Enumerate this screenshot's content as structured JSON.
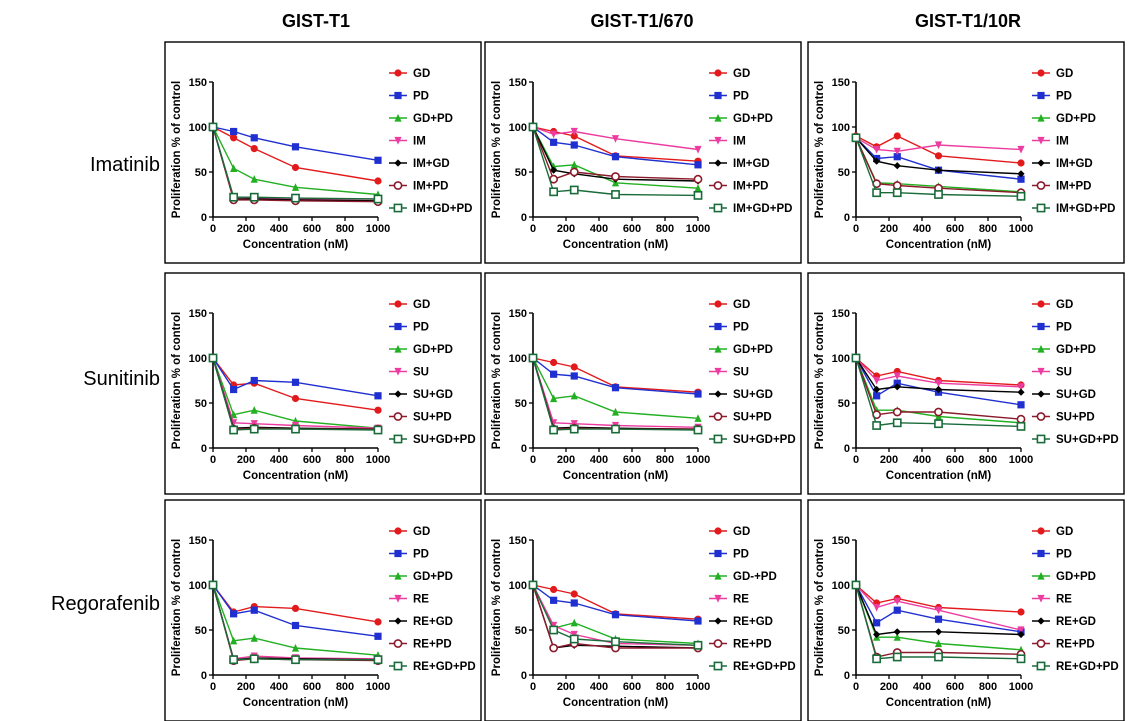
{
  "column_titles": [
    "GIST-T1",
    "GIST-T1/670",
    "GIST-T1/10R"
  ],
  "row_titles": [
    "Imatinib",
    "Sunitinib",
    "Regorafenib"
  ],
  "colors": {
    "GD": "#e31a1c",
    "PD": "#1f2fd0",
    "GD+PD": "#22b022",
    "drug": "#ec3ca0",
    "drug+GD": "#000000",
    "drug+PD": "#8b1a2a",
    "drug+GD+PD": "#1a6b3a"
  },
  "chart_data": [
    {
      "type": "line",
      "row": 0,
      "col": 0,
      "xlabel": "Concentration (nM)",
      "ylabel": "Proliferation % of control",
      "xlim": [
        0,
        1000
      ],
      "ylim": [
        0,
        150
      ],
      "xticks": [
        0,
        200,
        400,
        600,
        800,
        1000
      ],
      "yticks": [
        0,
        50,
        100,
        150
      ],
      "x": [
        0,
        125,
        250,
        500,
        1000
      ],
      "series": [
        {
          "name": "GD",
          "color_key": "GD",
          "marker": "circle",
          "values": [
            100,
            88,
            76,
            55,
            40
          ]
        },
        {
          "name": "PD",
          "color_key": "PD",
          "marker": "square",
          "values": [
            100,
            95,
            88,
            78,
            63
          ]
        },
        {
          "name": "GD+PD",
          "color_key": "GD+PD",
          "marker": "triangle",
          "values": [
            100,
            54,
            42,
            33,
            25
          ]
        },
        {
          "name": "IM",
          "color_key": "drug",
          "marker": "tridown",
          "values": [
            100,
            22,
            21,
            20,
            20
          ]
        },
        {
          "name": "IM+GD",
          "color_key": "drug+GD",
          "marker": "diamond",
          "values": [
            100,
            20,
            20,
            19,
            18
          ]
        },
        {
          "name": "IM+PD",
          "color_key": "drug+PD",
          "marker": "ocircle",
          "values": [
            100,
            19,
            19,
            18,
            17
          ]
        },
        {
          "name": "IM+GD+PD",
          "color_key": "drug+GD+PD",
          "marker": "osquare",
          "values": [
            100,
            22,
            22,
            21,
            20
          ]
        }
      ]
    },
    {
      "type": "line",
      "row": 0,
      "col": 1,
      "xlabel": "Concentration (nM)",
      "ylabel": "Proliferation % of control",
      "xlim": [
        0,
        1000
      ],
      "ylim": [
        0,
        150
      ],
      "xticks": [
        0,
        200,
        400,
        600,
        800,
        1000
      ],
      "yticks": [
        0,
        50,
        100,
        150
      ],
      "x": [
        0,
        125,
        250,
        500,
        1000
      ],
      "series": [
        {
          "name": "GD",
          "color_key": "GD",
          "marker": "circle",
          "values": [
            100,
            95,
            90,
            68,
            62
          ]
        },
        {
          "name": "PD",
          "color_key": "PD",
          "marker": "square",
          "values": [
            100,
            83,
            80,
            67,
            58
          ]
        },
        {
          "name": "GD+PD",
          "color_key": "GD+PD",
          "marker": "triangle",
          "values": [
            100,
            56,
            58,
            38,
            32
          ]
        },
        {
          "name": "IM",
          "color_key": "drug",
          "marker": "tridown",
          "values": [
            100,
            92,
            95,
            87,
            75
          ]
        },
        {
          "name": "IM+GD",
          "color_key": "drug+GD",
          "marker": "diamond",
          "values": [
            100,
            52,
            48,
            42,
            40
          ]
        },
        {
          "name": "IM+PD",
          "color_key": "drug+PD",
          "marker": "ocircle",
          "values": [
            100,
            42,
            50,
            45,
            42
          ]
        },
        {
          "name": "IM+GD+PD",
          "color_key": "drug+GD+PD",
          "marker": "osquare",
          "values": [
            100,
            28,
            30,
            25,
            24
          ]
        }
      ]
    },
    {
      "type": "line",
      "row": 0,
      "col": 2,
      "xlabel": "Concentration (nM)",
      "ylabel": "Proliferation % of control",
      "xlim": [
        0,
        1000
      ],
      "ylim": [
        0,
        150
      ],
      "xticks": [
        0,
        200,
        400,
        600,
        800,
        1000
      ],
      "yticks": [
        0,
        50,
        100,
        150
      ],
      "x": [
        0,
        125,
        250,
        500,
        1000
      ],
      "series": [
        {
          "name": "GD",
          "color_key": "GD",
          "marker": "circle",
          "values": [
            90,
            78,
            90,
            68,
            60
          ]
        },
        {
          "name": "PD",
          "color_key": "PD",
          "marker": "square",
          "values": [
            88,
            65,
            67,
            52,
            42
          ]
        },
        {
          "name": "GD+PD",
          "color_key": "GD+PD",
          "marker": "triangle",
          "values": [
            88,
            38,
            37,
            34,
            28
          ]
        },
        {
          "name": "IM",
          "color_key": "drug",
          "marker": "tridown",
          "values": [
            88,
            75,
            73,
            80,
            75
          ]
        },
        {
          "name": "IM+GD",
          "color_key": "drug+GD",
          "marker": "diamond",
          "values": [
            88,
            62,
            57,
            52,
            48
          ]
        },
        {
          "name": "IM+PD",
          "color_key": "drug+PD",
          "marker": "ocircle",
          "values": [
            88,
            37,
            35,
            32,
            27
          ]
        },
        {
          "name": "IM+GD+PD",
          "color_key": "drug+GD+PD",
          "marker": "osquare",
          "values": [
            88,
            27,
            27,
            25,
            23
          ]
        }
      ]
    },
    {
      "type": "line",
      "row": 1,
      "col": 0,
      "xlabel": "Concentration (nM)",
      "ylabel": "Proliferation % of control",
      "xlim": [
        0,
        1000
      ],
      "ylim": [
        0,
        150
      ],
      "xticks": [
        0,
        200,
        400,
        600,
        800,
        1000
      ],
      "yticks": [
        0,
        50,
        100,
        150
      ],
      "x": [
        0,
        125,
        250,
        500,
        1000
      ],
      "series": [
        {
          "name": "GD",
          "color_key": "GD",
          "marker": "circle",
          "values": [
            100,
            70,
            72,
            55,
            42
          ]
        },
        {
          "name": "PD",
          "color_key": "PD",
          "marker": "square",
          "values": [
            100,
            65,
            75,
            73,
            58
          ]
        },
        {
          "name": "GD+PD",
          "color_key": "GD+PD",
          "marker": "triangle",
          "values": [
            100,
            37,
            42,
            30,
            22
          ]
        },
        {
          "name": "SU",
          "color_key": "drug",
          "marker": "tridown",
          "values": [
            100,
            28,
            27,
            25,
            22
          ]
        },
        {
          "name": "SU+GD",
          "color_key": "drug+GD",
          "marker": "diamond",
          "values": [
            100,
            22,
            23,
            22,
            21
          ]
        },
        {
          "name": "SU+PD",
          "color_key": "drug+PD",
          "marker": "ocircle",
          "values": [
            100,
            21,
            22,
            21,
            21
          ]
        },
        {
          "name": "SU+GD+PD",
          "color_key": "drug+GD+PD",
          "marker": "osquare",
          "values": [
            100,
            20,
            21,
            21,
            20
          ]
        }
      ]
    },
    {
      "type": "line",
      "row": 1,
      "col": 1,
      "xlabel": "Concentration (nM)",
      "ylabel": "Proliferation % of control",
      "xlim": [
        0,
        1000
      ],
      "ylim": [
        0,
        150
      ],
      "xticks": [
        0,
        200,
        400,
        600,
        800,
        1000
      ],
      "yticks": [
        0,
        50,
        100,
        150
      ],
      "x": [
        0,
        125,
        250,
        500,
        1000
      ],
      "series": [
        {
          "name": "GD",
          "color_key": "GD",
          "marker": "circle",
          "values": [
            100,
            95,
            90,
            68,
            62
          ]
        },
        {
          "name": "PD",
          "color_key": "PD",
          "marker": "square",
          "values": [
            100,
            82,
            80,
            67,
            60
          ]
        },
        {
          "name": "GD+PD",
          "color_key": "GD+PD",
          "marker": "triangle",
          "values": [
            100,
            55,
            58,
            40,
            33
          ]
        },
        {
          "name": "SU",
          "color_key": "drug",
          "marker": "tridown",
          "values": [
            100,
            28,
            27,
            25,
            23
          ]
        },
        {
          "name": "SU+GD",
          "color_key": "drug+GD",
          "marker": "diamond",
          "values": [
            100,
            22,
            23,
            22,
            21
          ]
        },
        {
          "name": "SU+PD",
          "color_key": "drug+PD",
          "marker": "ocircle",
          "values": [
            100,
            21,
            22,
            21,
            21
          ]
        },
        {
          "name": "SU+GD+PD",
          "color_key": "drug+GD+PD",
          "marker": "osquare",
          "values": [
            100,
            20,
            21,
            21,
            20
          ]
        }
      ]
    },
    {
      "type": "line",
      "row": 1,
      "col": 2,
      "xlabel": "Concentration (nM)",
      "ylabel": "Proliferation % of control",
      "xlim": [
        0,
        1000
      ],
      "ylim": [
        0,
        150
      ],
      "xticks": [
        0,
        200,
        400,
        600,
        800,
        1000
      ],
      "yticks": [
        0,
        50,
        100,
        150
      ],
      "x": [
        0,
        125,
        250,
        500,
        1000
      ],
      "series": [
        {
          "name": "GD",
          "color_key": "GD",
          "marker": "circle",
          "values": [
            100,
            80,
            85,
            75,
            70
          ]
        },
        {
          "name": "PD",
          "color_key": "PD",
          "marker": "square",
          "values": [
            100,
            58,
            72,
            62,
            48
          ]
        },
        {
          "name": "GD+PD",
          "color_key": "GD+PD",
          "marker": "triangle",
          "values": [
            100,
            42,
            42,
            35,
            28
          ]
        },
        {
          "name": "SU",
          "color_key": "drug",
          "marker": "tridown",
          "values": [
            100,
            75,
            80,
            72,
            68
          ]
        },
        {
          "name": "SU+GD",
          "color_key": "drug+GD",
          "marker": "diamond",
          "values": [
            100,
            65,
            68,
            65,
            62
          ]
        },
        {
          "name": "SU+PD",
          "color_key": "drug+PD",
          "marker": "ocircle",
          "values": [
            100,
            37,
            40,
            40,
            32
          ]
        },
        {
          "name": "SU+GD+PD",
          "color_key": "drug+GD+PD",
          "marker": "osquare",
          "values": [
            100,
            25,
            28,
            27,
            24
          ]
        }
      ]
    },
    {
      "type": "line",
      "row": 2,
      "col": 0,
      "xlabel": "Concentration (nM)",
      "ylabel": "Proliferation % of control",
      "xlim": [
        0,
        1000
      ],
      "ylim": [
        0,
        150
      ],
      "xticks": [
        0,
        200,
        400,
        600,
        800,
        1000
      ],
      "yticks": [
        0,
        50,
        100,
        150
      ],
      "x": [
        0,
        125,
        250,
        500,
        1000
      ],
      "series": [
        {
          "name": "GD",
          "color_key": "GD",
          "marker": "circle",
          "values": [
            100,
            70,
            76,
            74,
            59
          ]
        },
        {
          "name": "PD",
          "color_key": "PD",
          "marker": "square",
          "values": [
            100,
            68,
            72,
            55,
            43
          ]
        },
        {
          "name": "GD+PD",
          "color_key": "GD+PD",
          "marker": "triangle",
          "values": [
            100,
            38,
            41,
            30,
            22
          ]
        },
        {
          "name": "RE",
          "color_key": "drug",
          "marker": "tridown",
          "values": [
            100,
            18,
            21,
            19,
            18
          ]
        },
        {
          "name": "RE+GD",
          "color_key": "drug+GD",
          "marker": "diamond",
          "values": [
            100,
            17,
            19,
            18,
            17
          ]
        },
        {
          "name": "RE+PD",
          "color_key": "drug+PD",
          "marker": "ocircle",
          "values": [
            100,
            16,
            18,
            17,
            16
          ]
        },
        {
          "name": "RE+GD+PD",
          "color_key": "drug+GD+PD",
          "marker": "osquare",
          "values": [
            100,
            17,
            18,
            17,
            17
          ]
        }
      ]
    },
    {
      "type": "line",
      "row": 2,
      "col": 1,
      "xlabel": "Concentration (nM)",
      "ylabel": "Proliferation % of control",
      "xlim": [
        0,
        1000
      ],
      "ylim": [
        0,
        150
      ],
      "xticks": [
        0,
        200,
        400,
        600,
        800,
        1000
      ],
      "yticks": [
        0,
        50,
        100,
        150
      ],
      "x": [
        0,
        125,
        250,
        500,
        1000
      ],
      "series": [
        {
          "name": "GD",
          "color_key": "GD",
          "marker": "circle",
          "values": [
            100,
            95,
            90,
            68,
            62
          ]
        },
        {
          "name": "PD",
          "color_key": "PD",
          "marker": "square",
          "values": [
            100,
            83,
            80,
            67,
            60
          ]
        },
        {
          "name": "GD-+PD",
          "color_key": "GD+PD",
          "marker": "triangle",
          "values": [
            100,
            52,
            58,
            40,
            35
          ]
        },
        {
          "name": "RE",
          "color_key": "drug",
          "marker": "tridown",
          "values": [
            100,
            55,
            45,
            35,
            33
          ]
        },
        {
          "name": "RE+GD",
          "color_key": "drug+GD",
          "marker": "diamond",
          "values": [
            100,
            30,
            33,
            32,
            30
          ]
        },
        {
          "name": "RE+PD",
          "color_key": "drug+PD",
          "marker": "ocircle",
          "values": [
            100,
            30,
            35,
            30,
            30
          ]
        },
        {
          "name": "RE+GD+PD",
          "color_key": "drug+GD+PD",
          "marker": "osquare",
          "values": [
            100,
            50,
            40,
            37,
            33
          ]
        }
      ]
    },
    {
      "type": "line",
      "row": 2,
      "col": 2,
      "xlabel": "Concentration (nM)",
      "ylabel": "Proliferation % of control",
      "xlim": [
        0,
        1000
      ],
      "ylim": [
        0,
        150
      ],
      "xticks": [
        0,
        200,
        400,
        600,
        800,
        1000
      ],
      "yticks": [
        0,
        50,
        100,
        150
      ],
      "x": [
        0,
        125,
        250,
        500,
        1000
      ],
      "series": [
        {
          "name": "GD",
          "color_key": "GD",
          "marker": "circle",
          "values": [
            100,
            80,
            85,
            75,
            70
          ]
        },
        {
          "name": "PD",
          "color_key": "PD",
          "marker": "square",
          "values": [
            100,
            58,
            72,
            62,
            48
          ]
        },
        {
          "name": "GD+PD",
          "color_key": "GD+PD",
          "marker": "triangle",
          "values": [
            100,
            42,
            42,
            35,
            28
          ]
        },
        {
          "name": "RE",
          "color_key": "drug",
          "marker": "tridown",
          "values": [
            100,
            75,
            82,
            72,
            50
          ]
        },
        {
          "name": "RE+GD",
          "color_key": "drug+GD",
          "marker": "diamond",
          "values": [
            100,
            45,
            48,
            48,
            45
          ]
        },
        {
          "name": "RE+PD",
          "color_key": "drug+PD",
          "marker": "ocircle",
          "values": [
            100,
            20,
            25,
            25,
            23
          ]
        },
        {
          "name": "RE+GD+PD",
          "color_key": "drug+GD+PD",
          "marker": "osquare",
          "values": [
            100,
            18,
            20,
            20,
            18
          ]
        }
      ]
    }
  ]
}
